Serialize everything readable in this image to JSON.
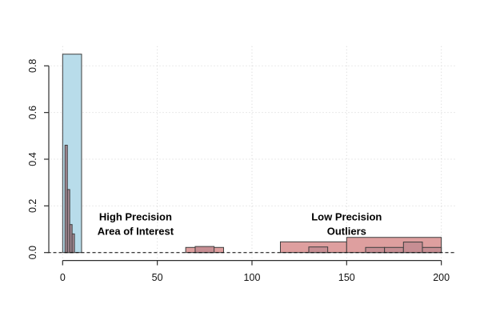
{
  "figure": {
    "background": "#ffffff",
    "axis_color": "#2e2e2e",
    "tick_label_color": "#111111"
  },
  "chart_data": {
    "type": "bar",
    "subtype": "overlaid-histograms-density",
    "title": "",
    "xlabel": "",
    "ylabel": "",
    "xlim": [
      -8,
      208
    ],
    "ylim": [
      -0.034,
      0.884
    ],
    "x_ticks": {
      "values": [
        0,
        50,
        100,
        150,
        200
      ],
      "labels": [
        "0",
        "50",
        "100",
        "150",
        "200"
      ]
    },
    "y_ticks": {
      "values": [
        0.0,
        0.2,
        0.4,
        0.6,
        0.8
      ],
      "labels": [
        "0.0",
        "0.2",
        "0.4",
        "0.6",
        "0.8"
      ]
    },
    "grid": {
      "on": true,
      "style": "dotted",
      "color": "#d4d4d4"
    },
    "zero_line": {
      "y": 0,
      "style": "dashed",
      "color": "#000000"
    },
    "legend_position": "none",
    "series": [
      {
        "name": "high-precision-block",
        "fill": "#b8dcea",
        "border": "#3d3d3d",
        "bars": [
          {
            "x0": 0,
            "x1": 10,
            "height": 0.85
          }
        ]
      },
      {
        "name": "low-precision-coarse-bins",
        "fill": "#de9f9f",
        "border": "#3d3d3d",
        "bars": [
          {
            "x0": 65,
            "x1": 85,
            "height": 0.022
          },
          {
            "x0": 115,
            "x1": 150,
            "height": 0.046
          },
          {
            "x0": 150,
            "x1": 200,
            "height": 0.065
          }
        ]
      },
      {
        "name": "low-precision-fine-bins",
        "fill": "#c78e93",
        "border": "#3d3d3d",
        "bars": [
          {
            "x0": 70,
            "x1": 80,
            "height": 0.026
          },
          {
            "x0": 130,
            "x1": 140,
            "height": 0.024
          },
          {
            "x0": 160,
            "x1": 170,
            "height": 0.022
          },
          {
            "x0": 170,
            "x1": 180,
            "height": 0.022
          },
          {
            "x0": 180,
            "x1": 190,
            "height": 0.045
          },
          {
            "x0": 190,
            "x1": 200,
            "height": 0.022
          }
        ]
      },
      {
        "name": "high-precision-fine-bins",
        "fill": "#a78b95",
        "border": "#3d3d3d",
        "bars": [
          {
            "x0": 1.25,
            "x1": 2.5,
            "height": 0.46
          },
          {
            "x0": 2.5,
            "x1": 3.75,
            "height": 0.27
          },
          {
            "x0": 3.75,
            "x1": 5.0,
            "height": 0.12
          },
          {
            "x0": 5.0,
            "x1": 6.25,
            "height": 0.08
          }
        ]
      }
    ],
    "annotations": [
      {
        "text_lines": [
          "High Precision",
          "Area of Interest"
        ],
        "x": 38.5,
        "y_values": [
          0.138,
          0.076
        ]
      },
      {
        "text_lines": [
          "Low Precision",
          "Outliers"
        ],
        "x": 150,
        "y_values": [
          0.138,
          0.076
        ]
      }
    ]
  }
}
